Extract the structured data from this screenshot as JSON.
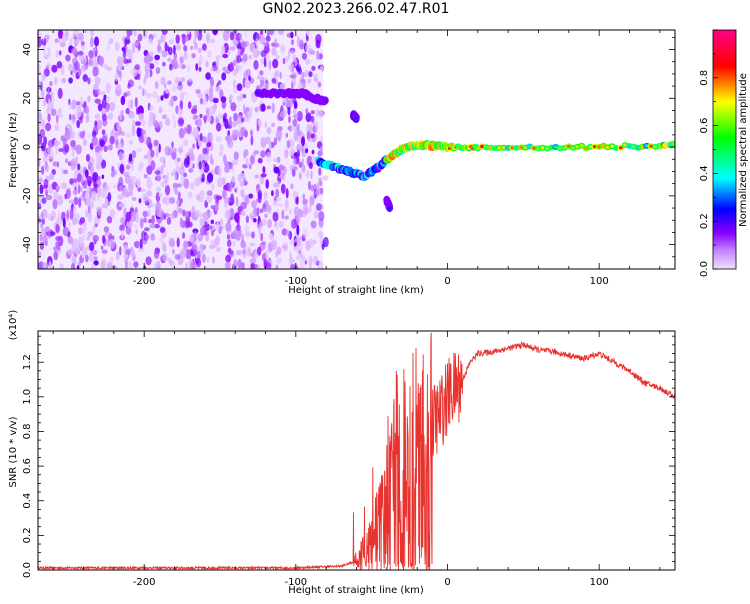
{
  "title": "GN02.2023.266.02.47.R01",
  "chart_data": [
    {
      "type": "heatmap",
      "title": "GN02.2023.266.02.47.R01",
      "xlabel": "Height of straight line (km)",
      "ylabel": "Frequency (Hz)",
      "xlim": [
        -270,
        150
      ],
      "ylim": [
        -50,
        48
      ],
      "xticks": [
        "-200",
        "-100",
        "0",
        "100"
      ],
      "yticks": [
        "-40",
        "-20",
        "0",
        "20",
        "40"
      ],
      "noise_region_x": [
        -270,
        -82
      ],
      "colorbar": {
        "label": "Normalized spectral amplitude",
        "range": [
          0,
          1
        ],
        "ticks": [
          "0.0",
          "0.2",
          "0.4",
          "0.6",
          "0.8"
        ],
        "colors": [
          "#e0c8ff",
          "#8800ff",
          "#0000ff",
          "#00ffff",
          "#00ff00",
          "#ffff00",
          "#ff0000",
          "#ff0088"
        ]
      },
      "features": [
        {
          "name": "",
          "x": [
            -125,
            -105,
            -95,
            -88,
            -80
          ],
          "y": [
            22,
            22,
            22,
            20,
            19
          ],
          "amplitude": 0.2
        },
        {
          "name": "",
          "x": [
            -85,
            -75,
            -65,
            -55,
            -45,
            -38,
            -30,
            -20,
            -10,
            0,
            20,
            60,
            100,
            140,
            150
          ],
          "y": [
            -6,
            -8,
            -10,
            -12,
            -8,
            -4,
            -1,
            1,
            0.5,
            0,
            0,
            0,
            0,
            0.5,
            1
          ],
          "amplitude": 0.7
        },
        {
          "name": "",
          "x": [
            -62,
            -60
          ],
          "y": [
            13,
            12
          ],
          "amplitude": 0.3
        },
        {
          "name": "",
          "x": [
            -40,
            -38
          ],
          "y": [
            -22,
            -25
          ],
          "amplitude": 0.2
        }
      ]
    },
    {
      "type": "line",
      "xlabel": "Height of straight line (km)",
      "ylabel": "SNR (10 * v/v)",
      "y_multiplier": "(x10⁴)",
      "xlim": [
        -270,
        150
      ],
      "ylim": [
        0,
        1.38
      ],
      "xticks": [
        "-200",
        "-100",
        "0",
        "100"
      ],
      "yticks": [
        "0.0",
        "0.2",
        "0.4",
        "0.6",
        "0.8",
        "1.0",
        "1.2"
      ],
      "color": "#e8322e",
      "x": [
        -270,
        -200,
        -100,
        -70,
        -60,
        -55,
        -50,
        -45,
        -40,
        -35,
        -30,
        -25,
        -20,
        -15,
        -10,
        -5,
        0,
        5,
        10,
        15,
        20,
        30,
        40,
        50,
        60,
        70,
        80,
        90,
        100,
        110,
        120,
        130,
        140,
        150
      ],
      "y": [
        0.01,
        0.01,
        0.01,
        0.02,
        0.05,
        0.1,
        0.15,
        0.25,
        0.35,
        0.55,
        0.6,
        0.55,
        0.7,
        0.6,
        0.85,
        0.9,
        1.0,
        1.05,
        1.1,
        1.2,
        1.25,
        1.26,
        1.28,
        1.3,
        1.27,
        1.26,
        1.24,
        1.22,
        1.25,
        1.2,
        1.15,
        1.08,
        1.05,
        1.0
      ]
    }
  ]
}
